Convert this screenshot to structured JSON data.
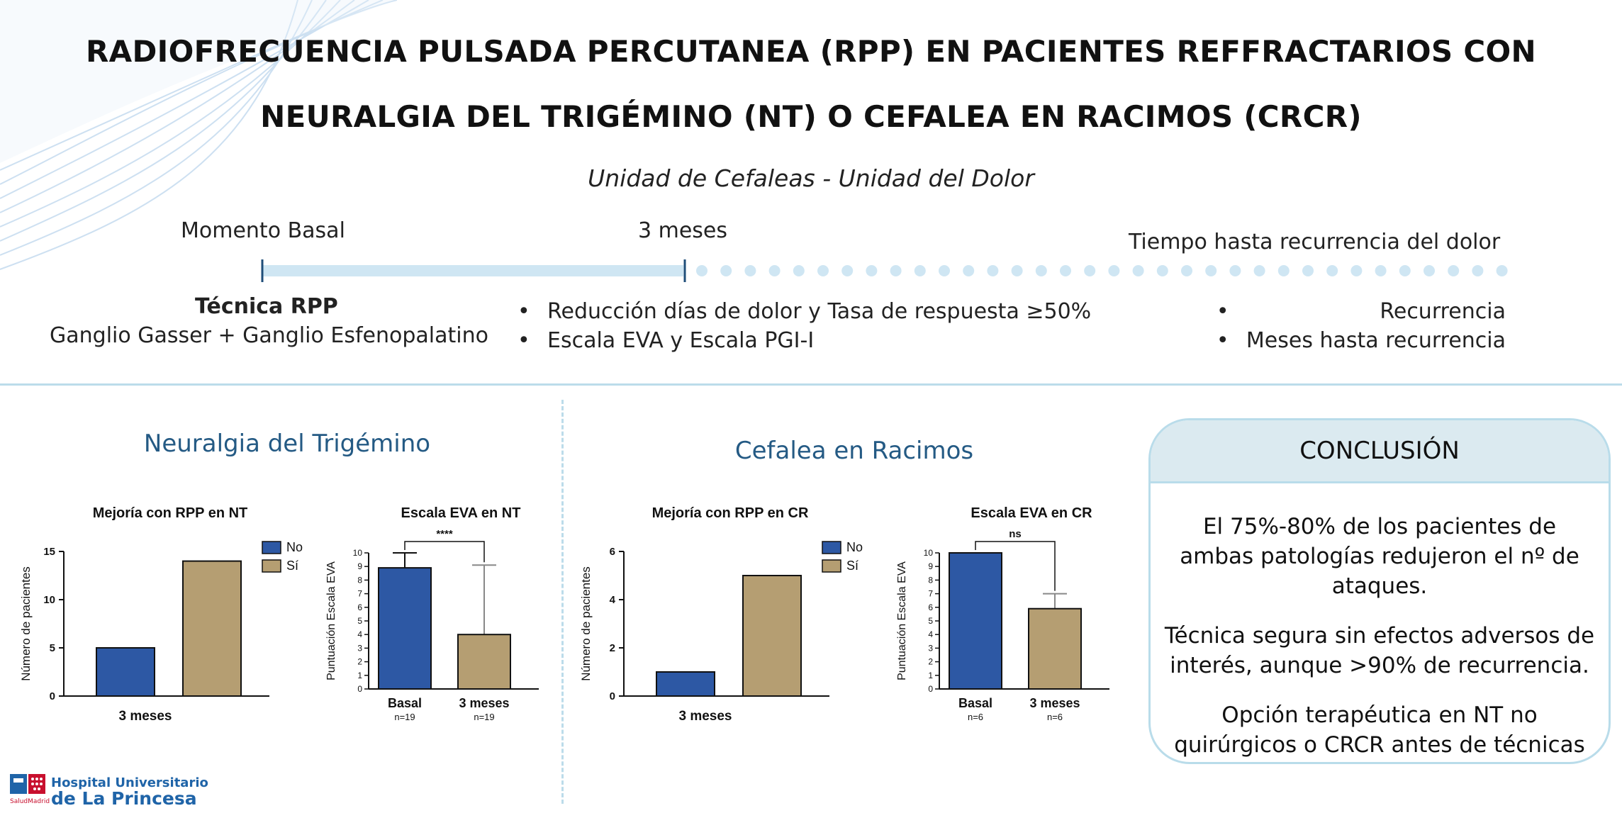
{
  "title": {
    "line1": "RADIOFRECUENCIA PULSADA PERCUTANEA (RPP) EN PACIENTES REFFRACTARIOS CON",
    "line2": "NEURALGIA DEL TRIGÉMINO (NT) O CEFALEA EN RACIMOS (CRCR)"
  },
  "subtitle": "Unidad de Cefaleas - Unidad del Dolor",
  "timeline": {
    "basal_label": "Momento Basal",
    "three_months_label": "3 meses",
    "recurrence_label": "Tiempo hasta recurrencia del dolor",
    "technique_title": "Técnica RPP",
    "technique_detail": "Ganglio Gasser + Ganglio Esfenopalatino",
    "three_months_bullets": [
      "Reducción días de dolor y Tasa de respuesta ≥50%",
      "Escala EVA y Escala PGI-I"
    ],
    "recurrence_bullets": [
      "Recurrencia",
      "Meses hasta recurrencia"
    ],
    "colors": {
      "solid": "#cfe6f3",
      "dots": "#cfe6f3",
      "tick": "#1f4e79"
    }
  },
  "sections": {
    "nt_title": "Neuralgia del Trigémino",
    "cr_title": "Cefalea en Racimos"
  },
  "colors": {
    "no": "#2d58a4",
    "si": "#b59e72",
    "heading": "#245a84"
  },
  "chart_data": [
    {
      "type": "bar",
      "title": "Mejoría con RPP en NT",
      "xlabel": "3 meses",
      "ylabel": "Número de pacientes",
      "ylim": [
        0,
        15
      ],
      "yticks": [
        0,
        5,
        10,
        15
      ],
      "legend_position": "right",
      "series": [
        {
          "name": "No",
          "values": [
            5
          ]
        },
        {
          "name": "Sí",
          "values": [
            14
          ]
        }
      ]
    },
    {
      "type": "bar",
      "title": "Escala EVA en NT",
      "ylabel": "Puntuación Escala EVA",
      "ylim": [
        0,
        10
      ],
      "yticks": [
        0,
        1,
        2,
        3,
        4,
        5,
        6,
        7,
        8,
        9,
        10
      ],
      "categories": [
        "Basal",
        "3 meses"
      ],
      "n_labels": [
        "n=19",
        "n=19"
      ],
      "values": [
        8.9,
        4.0
      ],
      "error_upper": [
        10.0,
        9.1
      ],
      "significance": "****"
    },
    {
      "type": "bar",
      "title": "Mejoría con RPP en CR",
      "xlabel": "3 meses",
      "ylabel": "Número de pacientes",
      "ylim": [
        0,
        6
      ],
      "yticks": [
        0,
        2,
        4,
        6
      ],
      "legend_position": "right",
      "series": [
        {
          "name": "No",
          "values": [
            1
          ]
        },
        {
          "name": "Sí",
          "values": [
            5
          ]
        }
      ]
    },
    {
      "type": "bar",
      "title": "Escala EVA en CR",
      "ylabel": "Puntuación Escala EVA",
      "ylim": [
        0,
        10
      ],
      "yticks": [
        0,
        1,
        2,
        3,
        4,
        5,
        6,
        7,
        8,
        9,
        10
      ],
      "categories": [
        "Basal",
        "3 meses"
      ],
      "n_labels": [
        "n=6",
        "n=6"
      ],
      "values": [
        10.0,
        5.9
      ],
      "error_upper": [
        10.0,
        7.0
      ],
      "significance": "ns"
    }
  ],
  "conclusion": {
    "heading": "CONCLUSIÓN",
    "paragraphs": [
      "El 75%-80% de los pacientes de ambas patologías redujeron el nº de ataques.",
      "Técnica segura sin efectos adversos de interés, aunque >90% de recurrencia.",
      "Opción terapéutica en NT no quirúrgicos o CRCR antes de técnicas más invasivas"
    ]
  },
  "logo": {
    "line1": "Hospital Universitario",
    "line2": "de La Princesa",
    "small": "SaludMadrid"
  }
}
